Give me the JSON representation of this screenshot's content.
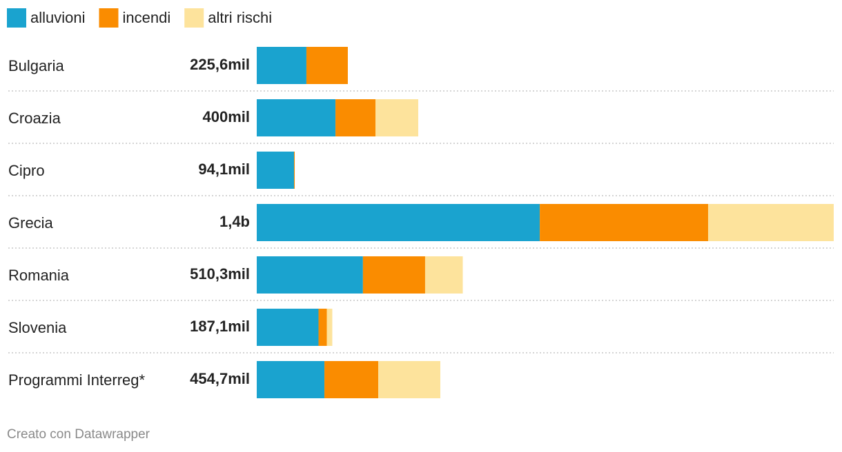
{
  "chart_data": {
    "type": "stacked-bar",
    "categories": [
      "Bulgaria",
      "Croazia",
      "Cipro",
      "Grecia",
      "Romania",
      "Slovenia",
      "Programmi Interreg*"
    ],
    "series": [
      {
        "name": "alluvioni",
        "color": "#1aa3cf",
        "values": [
          123,
          195,
          92.3,
          701,
          263,
          153,
          167.6
        ]
      },
      {
        "name": "incendi",
        "color": "#fa8c00",
        "values": [
          102.6,
          99,
          1.8,
          417,
          154,
          20.5,
          133.4
        ]
      },
      {
        "name": "altri rischi",
        "color": "#fde39c",
        "values": [
          0,
          106,
          0,
          311,
          93.3,
          13.6,
          153.7
        ]
      }
    ],
    "totals": [
      225.6,
      400,
      94.1,
      1429,
      510.3,
      187.1,
      454.7
    ],
    "total_labels": [
      "225,6mil",
      "400mil",
      "94,1mil",
      "1,4b",
      "510,3mil",
      "187,1mil",
      "454,7mil"
    ],
    "source": "Creato con Datawrapper"
  }
}
